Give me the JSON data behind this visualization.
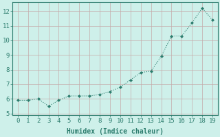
{
  "x": [
    0,
    1,
    2,
    3,
    4,
    5,
    6,
    7,
    8,
    9,
    10,
    11,
    12,
    13,
    14,
    15,
    16,
    17,
    18,
    19
  ],
  "y": [
    5.9,
    5.9,
    6.0,
    5.5,
    5.9,
    6.2,
    6.2,
    6.2,
    6.3,
    6.5,
    6.8,
    7.3,
    7.8,
    7.9,
    8.9,
    10.3,
    10.3,
    11.2,
    12.2,
    11.4
  ],
  "line_color": "#2d7d6e",
  "marker_color": "#2d7d6e",
  "bg_color": "#cef0ea",
  "grid_color": "#c4aaaa",
  "xlabel": "Humidex (Indice chaleur)",
  "xlabel_fontsize": 7,
  "tick_fontsize": 6.5,
  "ylim": [
    4.9,
    12.6
  ],
  "xlim": [
    -0.5,
    19.5
  ],
  "yticks": [
    5,
    6,
    7,
    8,
    9,
    10,
    11,
    12
  ],
  "xticks": [
    0,
    1,
    2,
    3,
    4,
    5,
    6,
    7,
    8,
    9,
    10,
    11,
    12,
    13,
    14,
    15,
    16,
    17,
    18,
    19
  ]
}
